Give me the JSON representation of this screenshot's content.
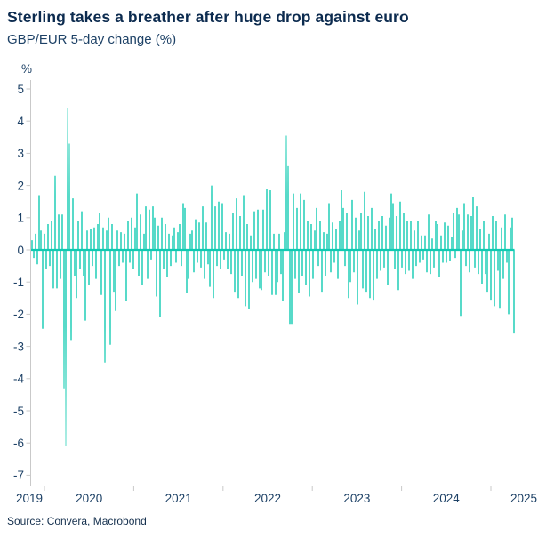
{
  "header": {
    "title": "Sterling takes a breather after huge drop against euro",
    "subtitle": "GBP/EUR 5-day change (%)"
  },
  "footer": {
    "source": "Source: Convera, Macrobond"
  },
  "colors": {
    "bar_teal": "#10cbb2",
    "bar_tip_fade": "#a9ece2",
    "axis_gray": "#c9c9c9",
    "navy_text": "#1d4166",
    "title_navy": "#0c2b4f"
  },
  "chart_data": {
    "type": "bar",
    "title": "Sterling takes a breather after huge drop against euro",
    "subtitle": "GBP/EUR 5-day change (%)",
    "ylabel": "%",
    "ylim": [
      -7,
      5
    ],
    "yticks": [
      5,
      4,
      3,
      2,
      1,
      0,
      -1,
      -2,
      -3,
      -4,
      -5,
      -6,
      -7
    ],
    "xticks": [
      2019,
      2020,
      2021,
      2022,
      2023,
      2024,
      2025
    ],
    "x_range_years": [
      2019.86,
      2025.26
    ],
    "sampling": "uniform, approx weekly 5-day % changes",
    "grid": false,
    "legend": "none",
    "notable_points": {
      "covid_mar_2020_low": -6.1,
      "covid_mar_2020_high": 4.4,
      "mini_budget_sep_2022_high": 3.55,
      "final_huge_drop_2025": -2.6
    },
    "values": [
      0.3,
      -0.25,
      0.5,
      -0.45,
      1.7,
      0.6,
      -2.45,
      0.5,
      -0.6,
      0.8,
      -0.5,
      0.9,
      -1.2,
      2.3,
      -1.2,
      1.1,
      -0.9,
      1.1,
      -4.3,
      -6.1,
      4.4,
      3.3,
      -2.8,
      1.6,
      -0.8,
      -1.5,
      0.9,
      -0.6,
      1.2,
      -0.8,
      -2.2,
      0.6,
      -1.1,
      0.65,
      -0.5,
      0.7,
      -0.9,
      0.8,
      1.15,
      -1.4,
      0.7,
      -3.5,
      0.6,
      1.0,
      -2.95,
      0.8,
      -1.3,
      -1.9,
      0.6,
      -0.5,
      0.55,
      -0.4,
      0.5,
      -1.6,
      0.9,
      -0.4,
      1.0,
      -0.6,
      0.7,
      1.75,
      -0.8,
      1.1,
      -1.1,
      0.5,
      1.35,
      -0.9,
      1.25,
      -0.3,
      1.35,
      1.0,
      -1.45,
      0.75,
      -2.1,
      1.0,
      -0.6,
      0.8,
      -0.85,
      0.5,
      -0.5,
      0.45,
      0.7,
      -0.4,
      0.55,
      0.8,
      -0.5,
      1.45,
      1.3,
      -1.35,
      -0.9,
      0.5,
      0.6,
      -0.7,
      0.95,
      -0.4,
      0.85,
      -0.55,
      1.35,
      -0.9,
      0.85,
      -0.45,
      -1.15,
      2.0,
      -1.5,
      1.35,
      -0.5,
      1.5,
      -0.6,
      1.45,
      -0.3,
      0.55,
      -0.6,
      0.5,
      -0.75,
      1.15,
      -1.3,
      1.6,
      -1.5,
      1.05,
      -0.8,
      1.7,
      -1.75,
      0.8,
      -1.85,
      0.45,
      -1.0,
      1.2,
      -0.9,
      1.25,
      -1.2,
      -1.25,
      1.25,
      -0.7,
      1.9,
      -0.8,
      1.85,
      -1.4,
      0.5,
      -1.4,
      -1.0,
      0.5,
      -0.75,
      -1.6,
      0.55,
      3.55,
      2.6,
      -2.3,
      -2.3,
      1.75,
      -0.9,
      1.3,
      -1.35,
      1.75,
      -0.8,
      1.55,
      -1.1,
      0.9,
      -1.45,
      0.8,
      -0.9,
      0.6,
      1.3,
      -0.5,
      0.9,
      -1.3,
      0.55,
      -0.8,
      0.5,
      1.45,
      -0.7,
      0.85,
      -0.4,
      0.65,
      -0.9,
      0.9,
      1.85,
      1.3,
      -0.5,
      1.15,
      -1.5,
      -1.0,
      1.55,
      -0.7,
      1.0,
      -1.7,
      0.6,
      1.15,
      -1.2,
      1.8,
      -1.3,
      1.05,
      -1.5,
      1.3,
      -1.55,
      0.65,
      -0.9,
      0.9,
      -0.65,
      1.05,
      -0.55,
      0.75,
      -1.1,
      1.0,
      1.75,
      1.45,
      -0.6,
      1.05,
      -1.25,
      1.5,
      -0.55,
      1.15,
      -0.75,
      0.9,
      -0.65,
      0.9,
      -0.9,
      0.6,
      -0.5,
      0.9,
      -0.4,
      0.45,
      -0.3,
      0.45,
      -0.7,
      1.1,
      -0.75,
      0.35,
      -0.55,
      0.9,
      0.8,
      -0.85,
      0.45,
      -0.4,
      0.85,
      -0.4,
      0.75,
      -0.35,
      0.4,
      1.15,
      -0.25,
      1.3,
      1.1,
      -2.05,
      0.6,
      1.45,
      -0.5,
      1.1,
      -0.7,
      1.05,
      1.65,
      -0.55,
      1.35,
      -0.75,
      0.65,
      -1.05,
      0.9,
      -0.75,
      -1.3,
      0.5,
      -1.55,
      1.05,
      -1.75,
      0.9,
      -0.65,
      -1.8,
      0.7,
      -0.9,
      1.1,
      -0.4,
      -2.0,
      0.7,
      1.0,
      -2.6
    ]
  }
}
